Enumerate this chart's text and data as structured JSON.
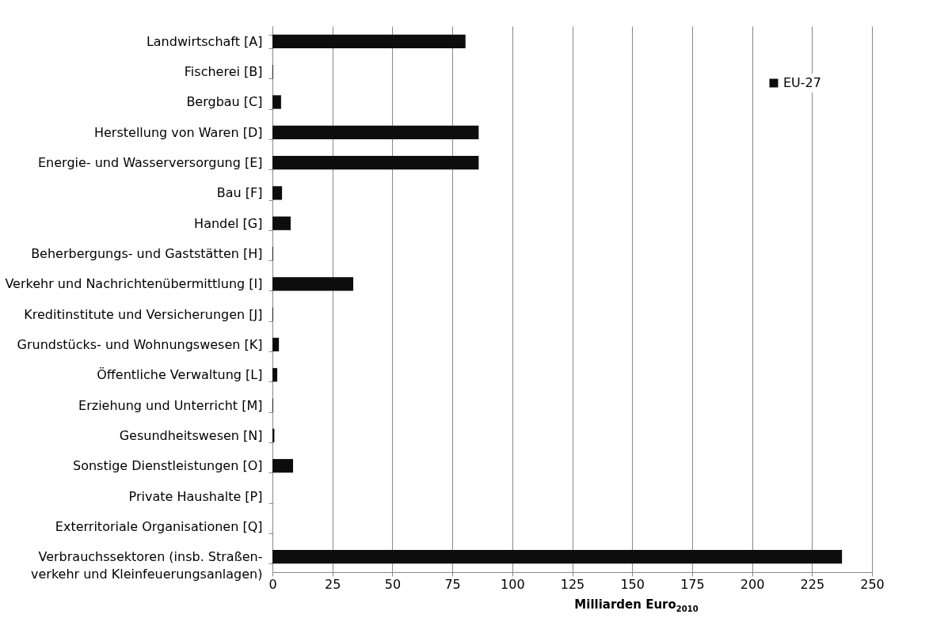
{
  "chart_data": {
    "type": "bar",
    "orientation": "horizontal",
    "xlabel": "Milliarden Euro$_{2010}$",
    "categories": [
      "Landwirtschaft [A]",
      "Fischerei [B]",
      "Bergbau [C]",
      "Herstellung von Waren [D]",
      "Energie- und Wasserversorgung [E]",
      "Bau [F]",
      "Handel [G]",
      "Beherbergungs- und Gaststätten [H]",
      "Verkehr und Nachrichtenübermittlung [I]",
      "Kreditinstitute und Versicherungen [J]",
      "Grundstücks- und Wohnungswesen [K]",
      "Öffentliche Verwaltung [L]",
      "Erziehung und Unterricht [M]",
      "Gesundheitswesen [N]",
      "Sonstige Dienstleistungen [O]",
      "Private Haushalte [P]",
      "Exterritoriale Organisationen [Q]",
      "Verbrauchssektoren (insb. Straßen-\nverkehr und Kleinfeuerungsanlagen)"
    ],
    "series": [
      {
        "name": "EU-27",
        "color": "#0d0d0d",
        "values": [
          80.5,
          0.3,
          3.6,
          86,
          86,
          4,
          7.6,
          0.3,
          33.7,
          0.3,
          2.7,
          2,
          0.3,
          0.8,
          8.6,
          0,
          0,
          237.5
        ]
      }
    ],
    "xlim": [
      0,
      250
    ],
    "xticks": [
      0,
      25,
      50,
      75,
      100,
      125,
      150,
      175,
      200,
      225,
      250
    ],
    "grid": "x",
    "legend": "top right"
  }
}
